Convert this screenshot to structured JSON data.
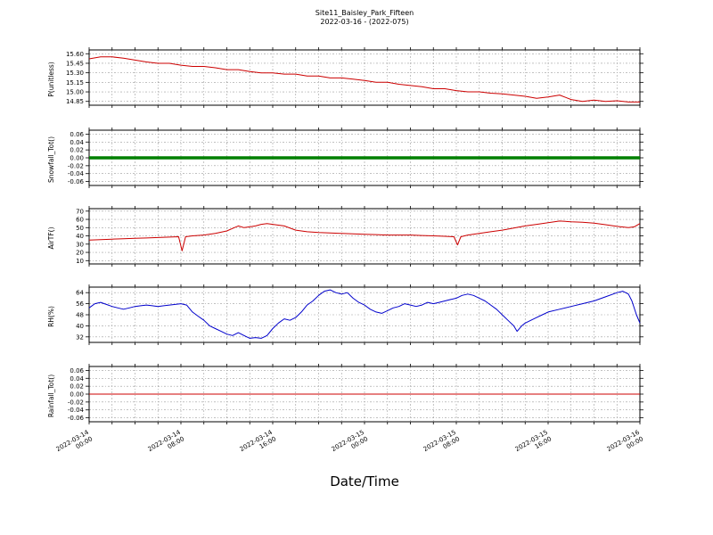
{
  "chart_data": {
    "type": "line",
    "title": "Site11_Baisley_Park_Fifteen",
    "subtitle": "2022-03-16 - (2022-075)",
    "xlabel": "Date/Time",
    "x_axis": "hours since 2022-03-14 00:00",
    "xlim": [
      0,
      48
    ],
    "x_minor_grid_hours": 2,
    "grid": true,
    "x_ticks": [
      {
        "h": 0,
        "date": "2022-03-14",
        "time": "00:00"
      },
      {
        "h": 8,
        "date": "2022-03-14",
        "time": "08:00"
      },
      {
        "h": 16,
        "date": "2022-03-14",
        "time": "16:00"
      },
      {
        "h": 24,
        "date": "2022-03-15",
        "time": "00:00"
      },
      {
        "h": 32,
        "date": "2022-03-15",
        "time": "08:00"
      },
      {
        "h": 40,
        "date": "2022-03-15",
        "time": "16:00"
      },
      {
        "h": 48,
        "date": "2022-03-16",
        "time": "00:00"
      }
    ],
    "panels": [
      {
        "ylabel": "P(unitless)",
        "color": "#cc0000",
        "linewidth": 1,
        "ylim": [
          14.79,
          15.66
        ],
        "yticks": [
          15.6,
          15.45,
          15.3,
          15.15,
          15.0,
          14.85
        ],
        "ytick_labels": [
          "15.60",
          "15.45",
          "15.30",
          "15.15",
          "15.00",
          "14.85"
        ],
        "points": [
          [
            0,
            15.52
          ],
          [
            1,
            15.55
          ],
          [
            2,
            15.55
          ],
          [
            3,
            15.53
          ],
          [
            4,
            15.5
          ],
          [
            5,
            15.47
          ],
          [
            6,
            15.45
          ],
          [
            7,
            15.45
          ],
          [
            8,
            15.42
          ],
          [
            9,
            15.4
          ],
          [
            10,
            15.4
          ],
          [
            11,
            15.38
          ],
          [
            12,
            15.35
          ],
          [
            13,
            15.35
          ],
          [
            14,
            15.32
          ],
          [
            15,
            15.3
          ],
          [
            16,
            15.3
          ],
          [
            17,
            15.28
          ],
          [
            18,
            15.28
          ],
          [
            19,
            15.25
          ],
          [
            20,
            15.25
          ],
          [
            21,
            15.22
          ],
          [
            22,
            15.22
          ],
          [
            23,
            15.2
          ],
          [
            24,
            15.18
          ],
          [
            25,
            15.15
          ],
          [
            26,
            15.15
          ],
          [
            27,
            15.12
          ],
          [
            28,
            15.1
          ],
          [
            29,
            15.08
          ],
          [
            30,
            15.05
          ],
          [
            31,
            15.05
          ],
          [
            32,
            15.02
          ],
          [
            33,
            15.0
          ],
          [
            34,
            15.0
          ],
          [
            35,
            14.98
          ],
          [
            36,
            14.97
          ],
          [
            37,
            14.95
          ],
          [
            38,
            14.93
          ],
          [
            39,
            14.9
          ],
          [
            40,
            14.92
          ],
          [
            41,
            14.95
          ],
          [
            42,
            14.88
          ],
          [
            43,
            14.85
          ],
          [
            44,
            14.87
          ],
          [
            45,
            14.85
          ],
          [
            46,
            14.86
          ],
          [
            47,
            14.84
          ],
          [
            48,
            14.84
          ]
        ]
      },
      {
        "ylabel": "Snowfall_Tot()",
        "color": "#008000",
        "linewidth": 3.5,
        "ylim": [
          -0.07,
          0.07
        ],
        "yticks": [
          0.06,
          0.04,
          0.02,
          0.0,
          -0.02,
          -0.04,
          -0.06
        ],
        "ytick_labels": [
          "0.06",
          "0.04",
          "0.02",
          "0.00",
          "-0.02",
          "-0.04",
          "-0.06"
        ],
        "points": [
          [
            0,
            0
          ],
          [
            48,
            0
          ]
        ]
      },
      {
        "ylabel": "AirTF()",
        "color": "#cc0000",
        "linewidth": 1,
        "ylim": [
          6,
          73
        ],
        "yticks": [
          70,
          60,
          50,
          40,
          30,
          20,
          10
        ],
        "ytick_labels": [
          "70",
          "60",
          "50",
          "40",
          "30",
          "20",
          "10"
        ],
        "points": [
          [
            0,
            35
          ],
          [
            1,
            35.5
          ],
          [
            2,
            36
          ],
          [
            3,
            36.5
          ],
          [
            4,
            37
          ],
          [
            5,
            37.5
          ],
          [
            6,
            38
          ],
          [
            7,
            38.5
          ],
          [
            7.8,
            39
          ],
          [
            8.1,
            22
          ],
          [
            8.4,
            39
          ],
          [
            9,
            40
          ],
          [
            10,
            41
          ],
          [
            11,
            43
          ],
          [
            12,
            46
          ],
          [
            12.5,
            49
          ],
          [
            13,
            52
          ],
          [
            13.5,
            50
          ],
          [
            14,
            51
          ],
          [
            14.5,
            52
          ],
          [
            15,
            54
          ],
          [
            15.5,
            55
          ],
          [
            16,
            54
          ],
          [
            16.5,
            53
          ],
          [
            17,
            52
          ],
          [
            18,
            47
          ],
          [
            19,
            45
          ],
          [
            20,
            44
          ],
          [
            21,
            43.5
          ],
          [
            22,
            43
          ],
          [
            23,
            42.5
          ],
          [
            24,
            42
          ],
          [
            25,
            41.5
          ],
          [
            26,
            41
          ],
          [
            27,
            41
          ],
          [
            28,
            41
          ],
          [
            29,
            40.5
          ],
          [
            30,
            40
          ],
          [
            31,
            39.5
          ],
          [
            31.8,
            39
          ],
          [
            32.1,
            29
          ],
          [
            32.4,
            39
          ],
          [
            33,
            41
          ],
          [
            34,
            43
          ],
          [
            35,
            45
          ],
          [
            36,
            47
          ],
          [
            37,
            49.5
          ],
          [
            38,
            52
          ],
          [
            39,
            54
          ],
          [
            40,
            56
          ],
          [
            41,
            58
          ],
          [
            41.5,
            57.5
          ],
          [
            42,
            57
          ],
          [
            43,
            56.5
          ],
          [
            44,
            55.5
          ],
          [
            45,
            53.5
          ],
          [
            46,
            51.5
          ],
          [
            47,
            50
          ],
          [
            47.5,
            51
          ],
          [
            48,
            55
          ]
        ]
      },
      {
        "ylabel": "RH(%)",
        "color": "#0000cc",
        "linewidth": 1,
        "ylim": [
          28,
          68
        ],
        "yticks": [
          64,
          56,
          48,
          40,
          32
        ],
        "ytick_labels": [
          "64",
          "56",
          "48",
          "40",
          "32"
        ],
        "points": [
          [
            0,
            53
          ],
          [
            0.5,
            56
          ],
          [
            1,
            57
          ],
          [
            1.5,
            55.5
          ],
          [
            2,
            54
          ],
          [
            2.5,
            53
          ],
          [
            3,
            52
          ],
          [
            3.5,
            53
          ],
          [
            4,
            54
          ],
          [
            4.5,
            54.5
          ],
          [
            5,
            55
          ],
          [
            5.5,
            54.5
          ],
          [
            6,
            54
          ],
          [
            6.5,
            54.5
          ],
          [
            7,
            55
          ],
          [
            7.5,
            55.5
          ],
          [
            8,
            56
          ],
          [
            8.5,
            55
          ],
          [
            9,
            50
          ],
          [
            9.5,
            47
          ],
          [
            10,
            44
          ],
          [
            10.5,
            40
          ],
          [
            11,
            38
          ],
          [
            11.5,
            36
          ],
          [
            12,
            34
          ],
          [
            12.5,
            33
          ],
          [
            13,
            35
          ],
          [
            13.5,
            33
          ],
          [
            14,
            31
          ],
          [
            14.5,
            31.5
          ],
          [
            15,
            31
          ],
          [
            15.5,
            33
          ],
          [
            16,
            38
          ],
          [
            16.5,
            42
          ],
          [
            17,
            45
          ],
          [
            17.5,
            44
          ],
          [
            18,
            46
          ],
          [
            18.5,
            50
          ],
          [
            19,
            55
          ],
          [
            19.5,
            58
          ],
          [
            20,
            62
          ],
          [
            20.5,
            65
          ],
          [
            21,
            66
          ],
          [
            21.5,
            64
          ],
          [
            22,
            63
          ],
          [
            22.5,
            64
          ],
          [
            23,
            60
          ],
          [
            23.5,
            57
          ],
          [
            24,
            55
          ],
          [
            24.5,
            52
          ],
          [
            25,
            50
          ],
          [
            25.5,
            49
          ],
          [
            26,
            51
          ],
          [
            26.5,
            53
          ],
          [
            27,
            54
          ],
          [
            27.5,
            56
          ],
          [
            28,
            55
          ],
          [
            28.5,
            54
          ],
          [
            29,
            55
          ],
          [
            29.5,
            57
          ],
          [
            30,
            56
          ],
          [
            30.5,
            57
          ],
          [
            31,
            58
          ],
          [
            31.5,
            59
          ],
          [
            32,
            60
          ],
          [
            32.5,
            62
          ],
          [
            33,
            63
          ],
          [
            33.5,
            62
          ],
          [
            34,
            60
          ],
          [
            34.5,
            58
          ],
          [
            35,
            55
          ],
          [
            35.5,
            52
          ],
          [
            36,
            48
          ],
          [
            36.5,
            44
          ],
          [
            37,
            40
          ],
          [
            37.3,
            36
          ],
          [
            37.7,
            40
          ],
          [
            38,
            42
          ],
          [
            38.5,
            44
          ],
          [
            39,
            46
          ],
          [
            39.5,
            48
          ],
          [
            40,
            50
          ],
          [
            41,
            52
          ],
          [
            42,
            54
          ],
          [
            43,
            56
          ],
          [
            44,
            58
          ],
          [
            45,
            61
          ],
          [
            46,
            64
          ],
          [
            46.5,
            65
          ],
          [
            47,
            63
          ],
          [
            47.3,
            58
          ],
          [
            47.7,
            48
          ],
          [
            48,
            42
          ]
        ]
      },
      {
        "ylabel": "Rainfall_Tot()",
        "color": "#cc0000",
        "linewidth": 1,
        "ylim": [
          -0.07,
          0.07
        ],
        "yticks": [
          0.06,
          0.04,
          0.02,
          0.0,
          -0.02,
          -0.04,
          -0.06
        ],
        "ytick_labels": [
          "0.06",
          "0.04",
          "0.02",
          "0.00",
          "-0.02",
          "-0.04",
          "-0.06"
        ],
        "points": [
          [
            0,
            0
          ],
          [
            48,
            0
          ]
        ]
      }
    ]
  }
}
